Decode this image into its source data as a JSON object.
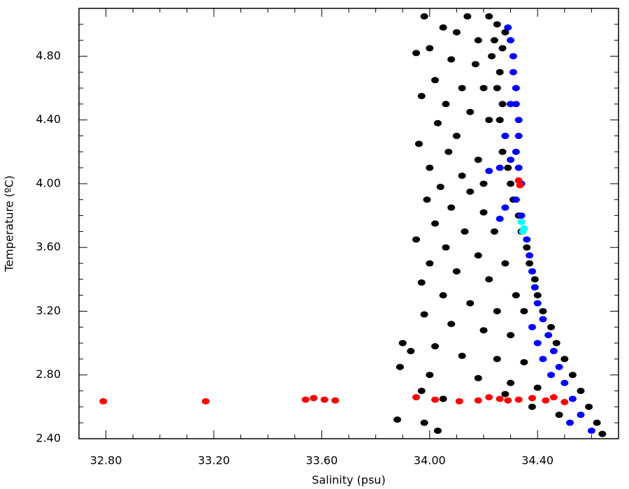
{
  "chart_data": {
    "type": "scatter",
    "x_label": "Salinity  (psu)",
    "y_label": "Temperature (ºC)",
    "xlim": [
      32.7,
      34.7
    ],
    "ylim": [
      2.4,
      5.1
    ],
    "xticks": [
      {
        "value": 32.8,
        "label": "32.80"
      },
      {
        "value": 33.2,
        "label": "33.20"
      },
      {
        "value": 33.6,
        "label": "33.60"
      },
      {
        "value": 34.0,
        "label": "34.00"
      },
      {
        "value": 34.4,
        "label": "34.40"
      }
    ],
    "yticks": [
      {
        "value": 2.4,
        "label": "2.40"
      },
      {
        "value": 2.8,
        "label": "2.80"
      },
      {
        "value": 3.2,
        "label": "3.20"
      },
      {
        "value": 3.6,
        "label": "3.60"
      },
      {
        "value": 4.0,
        "label": "4.00"
      },
      {
        "value": 4.4,
        "label": "4.40"
      },
      {
        "value": 4.8,
        "label": "4.80"
      }
    ],
    "xminorticks": [
      32.9,
      33.0,
      33.1,
      33.3,
      33.4,
      33.5,
      33.7,
      33.8,
      33.9,
      34.1,
      34.2,
      34.3,
      34.5,
      34.6
    ],
    "yminorticks": [
      2.5,
      2.6,
      2.7,
      2.9,
      3.0,
      3.1,
      3.3,
      3.4,
      3.5,
      3.7,
      3.8,
      3.9,
      4.1,
      4.2,
      4.3,
      4.5,
      4.6,
      4.7,
      4.9,
      5.0
    ],
    "series": [
      {
        "color": "#000000",
        "x": [
          34.22,
          34.25,
          34.28,
          34.24,
          34.27,
          34.23,
          34.26,
          34.25,
          34.27,
          34.26,
          34.28,
          34.27,
          34.29,
          34.3,
          34.31,
          34.33,
          34.34,
          34.36,
          34.37,
          34.39,
          34.4,
          34.42,
          34.45,
          34.47,
          34.5,
          34.53,
          34.56,
          34.59,
          34.62,
          34.64,
          33.98,
          34.05,
          34.1,
          34.14,
          34.0,
          33.95,
          34.08,
          34.17,
          34.02,
          34.12,
          33.97,
          34.06,
          34.15,
          34.03,
          34.1,
          33.96,
          34.07,
          34.18,
          34.0,
          34.12,
          34.04,
          34.15,
          33.99,
          34.08,
          34.2,
          34.02,
          34.13,
          33.95,
          34.06,
          34.18,
          34.0,
          34.1,
          34.22,
          33.97,
          34.05,
          34.15,
          34.25,
          33.98,
          34.08,
          34.2,
          34.3,
          33.9,
          33.93,
          34.02,
          34.12,
          34.25,
          34.35,
          33.89,
          34.0,
          34.18,
          34.3,
          34.4,
          33.97,
          34.05,
          34.38,
          34.48,
          33.98,
          34.03,
          33.88,
          34.28,
          34.32,
          34.35,
          34.28,
          34.24,
          34.2,
          34.22,
          34.2,
          34.18
        ],
        "y": [
          5.05,
          5.0,
          4.95,
          4.9,
          4.85,
          4.8,
          4.7,
          4.6,
          4.5,
          4.4,
          4.3,
          4.2,
          4.1,
          4.0,
          3.9,
          3.8,
          3.7,
          3.6,
          3.5,
          3.4,
          3.3,
          3.2,
          3.1,
          3.0,
          2.9,
          2.8,
          2.7,
          2.6,
          2.5,
          2.43,
          5.05,
          4.98,
          4.95,
          5.05,
          4.85,
          4.82,
          4.78,
          4.75,
          4.65,
          4.6,
          4.55,
          4.5,
          4.45,
          4.38,
          4.3,
          4.25,
          4.2,
          4.15,
          4.1,
          4.05,
          3.98,
          3.95,
          3.9,
          3.85,
          3.82,
          3.75,
          3.7,
          3.65,
          3.6,
          3.55,
          3.5,
          3.45,
          3.4,
          3.38,
          3.3,
          3.25,
          3.2,
          3.18,
          3.12,
          3.08,
          3.05,
          3.0,
          2.95,
          2.98,
          2.92,
          2.9,
          2.88,
          2.85,
          2.8,
          2.78,
          2.75,
          2.72,
          2.7,
          2.65,
          2.6,
          2.55,
          2.5,
          2.45,
          2.52,
          2.68,
          3.3,
          3.2,
          3.5,
          3.7,
          4.0,
          4.4,
          4.6,
          4.9
        ]
      },
      {
        "color": "#0000ff",
        "x": [
          34.29,
          34.3,
          34.31,
          34.31,
          34.32,
          34.32,
          34.33,
          34.33,
          34.32,
          34.3,
          34.26,
          34.22,
          34.33,
          34.34,
          34.32,
          34.28,
          34.26,
          34.34,
          34.36,
          34.37,
          34.38,
          34.39,
          34.4,
          34.42,
          34.44,
          34.46,
          34.48,
          34.5,
          34.53,
          34.56,
          34.6,
          34.45,
          34.42,
          34.4,
          34.38,
          34.52,
          34.28,
          34.3
        ],
        "y": [
          4.98,
          4.9,
          4.8,
          4.7,
          4.6,
          4.5,
          4.4,
          4.3,
          4.2,
          4.15,
          4.1,
          4.08,
          4.1,
          4.0,
          3.9,
          3.85,
          3.78,
          3.8,
          3.65,
          3.55,
          3.45,
          3.35,
          3.25,
          3.15,
          3.05,
          2.95,
          2.85,
          2.75,
          2.65,
          2.55,
          2.45,
          2.8,
          2.9,
          3.0,
          3.1,
          2.5,
          4.3,
          4.5
        ]
      },
      {
        "color": "#ff0000",
        "x": [
          32.79,
          33.17,
          33.54,
          33.57,
          33.61,
          33.65,
          33.95,
          34.02,
          34.11,
          34.18,
          34.22,
          34.26,
          34.29,
          34.33,
          34.38,
          34.43,
          34.46,
          34.5,
          34.33,
          34.335
        ],
        "y": [
          2.635,
          2.635,
          2.645,
          2.655,
          2.645,
          2.64,
          2.66,
          2.645,
          2.635,
          2.64,
          2.66,
          2.65,
          2.64,
          2.645,
          2.655,
          2.64,
          2.66,
          2.63,
          4.02,
          3.99
        ]
      },
      {
        "color": "#00ffff",
        "x": [
          34.34,
          34.35,
          34.345
        ],
        "y": [
          3.76,
          3.72,
          3.7
        ]
      }
    ]
  }
}
